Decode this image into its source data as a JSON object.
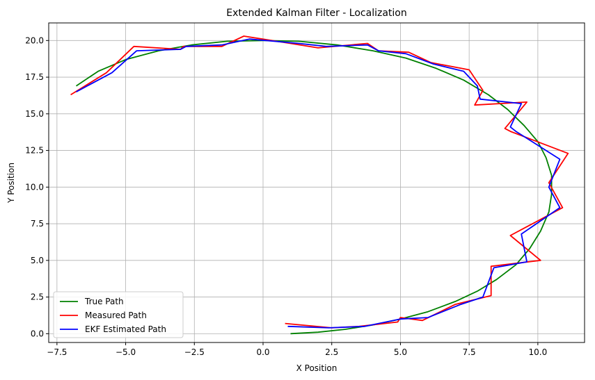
{
  "chart_data": {
    "type": "line",
    "title": "Extended Kalman Filter - Localization",
    "xlabel": "X Position",
    "ylabel": "Y Position",
    "xlim": [
      -7.8,
      11.7
    ],
    "ylim": [
      -0.6,
      21.2
    ],
    "xticks": [
      -7.5,
      -5.0,
      -2.5,
      0.0,
      2.5,
      5.0,
      7.5,
      10.0
    ],
    "xtick_labels": [
      "−7.5",
      "−5.0",
      "−2.5",
      "0.0",
      "2.5",
      "5.0",
      "7.5",
      "10.0"
    ],
    "yticks": [
      0.0,
      2.5,
      5.0,
      7.5,
      10.0,
      12.5,
      15.0,
      17.5,
      20.0
    ],
    "ytick_labels": [
      "0.0",
      "2.5",
      "5.0",
      "7.5",
      "10.0",
      "12.5",
      "15.0",
      "17.5",
      "20.0"
    ],
    "grid": true,
    "legend_position": "lower-left",
    "series": [
      {
        "name": "True Path",
        "color": "#008000",
        "points": [
          [
            1.0,
            0.0
          ],
          [
            2.0,
            0.1
          ],
          [
            3.0,
            0.3
          ],
          [
            4.0,
            0.6
          ],
          [
            5.0,
            1.0
          ],
          [
            6.0,
            1.5
          ],
          [
            7.0,
            2.2
          ],
          [
            7.8,
            2.9
          ],
          [
            8.5,
            3.7
          ],
          [
            9.2,
            4.7
          ],
          [
            9.7,
            5.8
          ],
          [
            10.1,
            7.0
          ],
          [
            10.4,
            8.3
          ],
          [
            10.5,
            9.5
          ],
          [
            10.5,
            10.8
          ],
          [
            10.3,
            12.0
          ],
          [
            10.0,
            13.1
          ],
          [
            9.5,
            14.2
          ],
          [
            8.9,
            15.3
          ],
          [
            8.2,
            16.3
          ],
          [
            7.3,
            17.3
          ],
          [
            6.3,
            18.1
          ],
          [
            5.2,
            18.8
          ],
          [
            4.0,
            19.3
          ],
          [
            2.7,
            19.7
          ],
          [
            1.3,
            19.95
          ],
          [
            0.0,
            20.0
          ],
          [
            -1.3,
            19.95
          ],
          [
            -2.6,
            19.7
          ],
          [
            -3.8,
            19.3
          ],
          [
            -5.0,
            18.7
          ],
          [
            -6.0,
            17.9
          ],
          [
            -6.8,
            16.9
          ]
        ]
      },
      {
        "name": "Measured Path",
        "color": "#ff0000",
        "points": [
          [
            0.8,
            0.7
          ],
          [
            2.5,
            0.4
          ],
          [
            3.5,
            0.5
          ],
          [
            4.9,
            0.8
          ],
          [
            5.0,
            1.1
          ],
          [
            5.8,
            0.9
          ],
          [
            7.0,
            2.0
          ],
          [
            8.3,
            2.6
          ],
          [
            8.3,
            4.6
          ],
          [
            10.1,
            5.0
          ],
          [
            9.0,
            6.7
          ],
          [
            10.9,
            8.6
          ],
          [
            10.4,
            10.3
          ],
          [
            11.1,
            12.3
          ],
          [
            9.0,
            13.8
          ],
          [
            8.8,
            14.0
          ],
          [
            9.6,
            15.8
          ],
          [
            7.7,
            15.6
          ],
          [
            8.0,
            16.6
          ],
          [
            7.5,
            18.0
          ],
          [
            6.1,
            18.5
          ],
          [
            5.3,
            19.2
          ],
          [
            4.2,
            19.3
          ],
          [
            3.8,
            19.8
          ],
          [
            2.0,
            19.5
          ],
          [
            1.0,
            19.8
          ],
          [
            -0.7,
            20.3
          ],
          [
            -1.5,
            19.6
          ],
          [
            -2.9,
            19.6
          ],
          [
            -3.0,
            19.4
          ],
          [
            -4.7,
            19.6
          ],
          [
            -5.7,
            17.8
          ],
          [
            -7.0,
            16.3
          ]
        ]
      },
      {
        "name": "EKF Estimated Path",
        "color": "#0000ff",
        "points": [
          [
            0.9,
            0.5
          ],
          [
            2.4,
            0.4
          ],
          [
            3.7,
            0.5
          ],
          [
            5.0,
            1.0
          ],
          [
            6.0,
            1.1
          ],
          [
            7.2,
            2.0
          ],
          [
            8.0,
            2.5
          ],
          [
            8.4,
            4.5
          ],
          [
            9.6,
            4.9
          ],
          [
            9.4,
            6.8
          ],
          [
            10.8,
            8.6
          ],
          [
            10.4,
            10.0
          ],
          [
            10.8,
            11.9
          ],
          [
            9.2,
            13.8
          ],
          [
            9.0,
            14.1
          ],
          [
            9.4,
            15.7
          ],
          [
            7.9,
            16.0
          ],
          [
            7.8,
            16.9
          ],
          [
            7.3,
            17.9
          ],
          [
            6.2,
            18.4
          ],
          [
            5.2,
            19.1
          ],
          [
            4.2,
            19.3
          ],
          [
            3.8,
            19.7
          ],
          [
            2.3,
            19.6
          ],
          [
            1.3,
            19.8
          ],
          [
            -0.5,
            20.1
          ],
          [
            -1.5,
            19.7
          ],
          [
            -2.8,
            19.6
          ],
          [
            -3.0,
            19.4
          ],
          [
            -4.6,
            19.3
          ],
          [
            -5.5,
            17.8
          ],
          [
            -6.8,
            16.5
          ]
        ]
      }
    ]
  }
}
